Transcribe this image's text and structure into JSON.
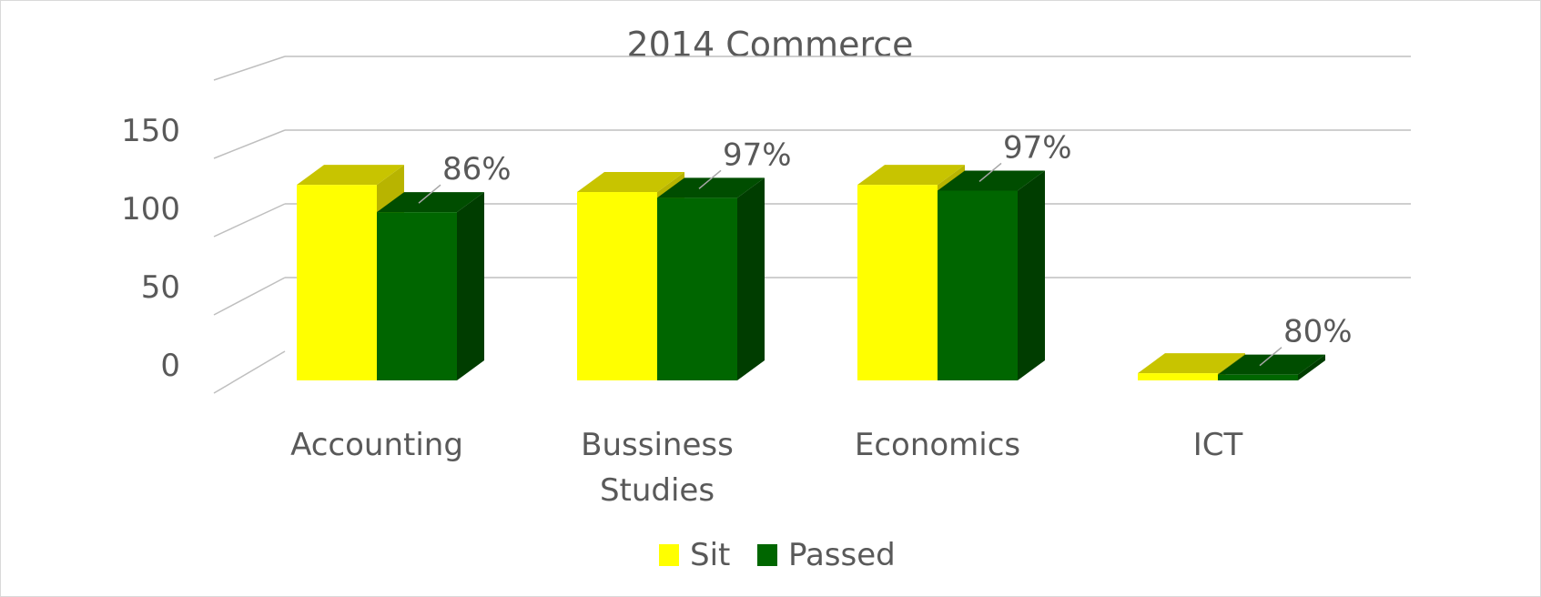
{
  "chart_data": {
    "type": "bar",
    "title": "2014 Commerce",
    "categories": [
      "Accounting",
      "Bussiness Studies",
      "Economics",
      "ICT"
    ],
    "category_lines": [
      [
        "Accounting"
      ],
      [
        "Bussiness",
        "Studies"
      ],
      [
        "Economics"
      ],
      [
        "ICT"
      ]
    ],
    "series": [
      {
        "name": "Sit",
        "values": [
          136,
          131,
          136,
          5
        ],
        "color": "#ffff00",
        "top_color": "#c8c400",
        "side_color": "#b8b400"
      },
      {
        "name": "Passed",
        "values": [
          117,
          127,
          132,
          4
        ],
        "color": "#006600",
        "top_color": "#004d00",
        "side_color": "#003d00"
      }
    ],
    "data_labels": [
      "86%",
      "97%",
      "97%",
      "80%"
    ],
    "y_ticks": [
      "0",
      "50",
      "100",
      "150"
    ],
    "ylim": [
      0,
      150
    ],
    "grid": true,
    "legend_position": "bottom",
    "three_d": true
  }
}
